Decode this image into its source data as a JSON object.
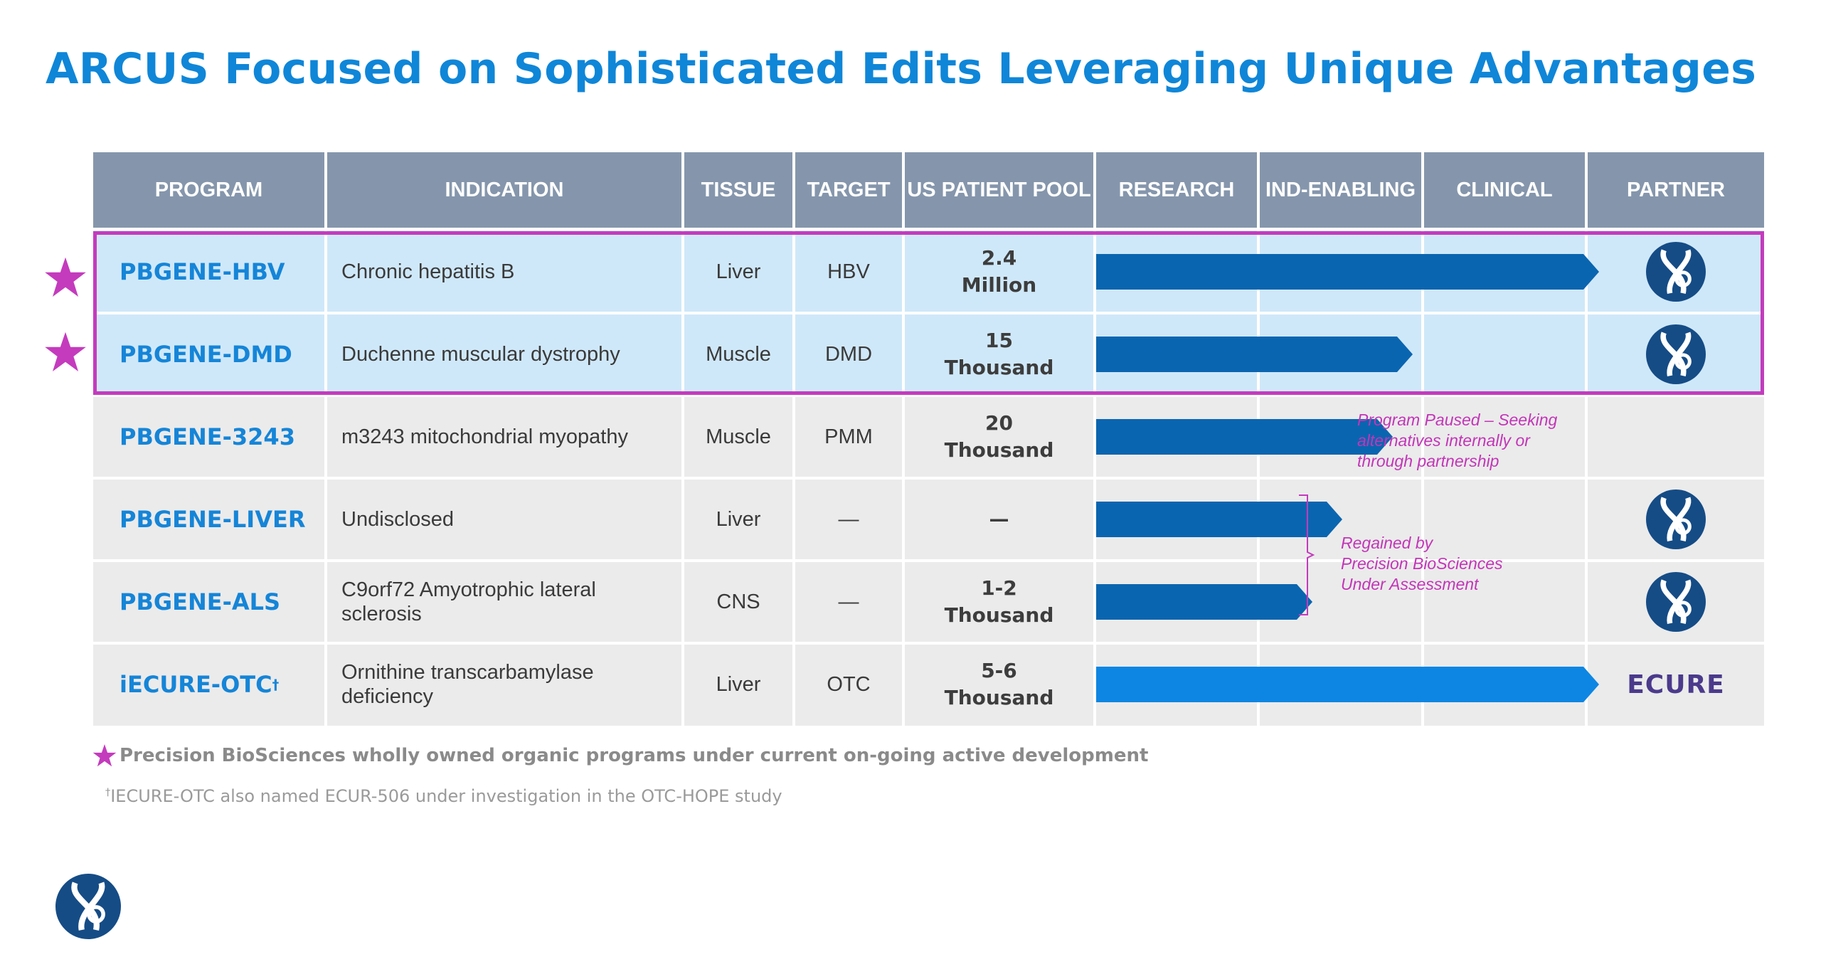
{
  "title": "ARCUS Focused on Sophisticated Edits Leveraging Unique Advantages",
  "headers": {
    "program": "PROGRAM",
    "indication": "INDICATION",
    "tissue": "TISSUE",
    "target": "TARGET",
    "pool": "US PATIENT POOL",
    "research": "RESEARCH",
    "ind_enabling": "IND-ENABLING",
    "clinical": "CLINICAL",
    "partner": "PARTNER"
  },
  "rows": [
    {
      "program": "PBGENE-HBV",
      "indication": "Chronic hepatitis B",
      "tissue": "Liver",
      "target": "HBV",
      "pool_line1": "2.4",
      "pool_line2": "Million",
      "progress_pct": 100,
      "partner": "precision-logo"
    },
    {
      "program": "PBGENE-DMD",
      "indication": "Duchenne muscular dystrophy",
      "tissue": "Muscle",
      "target": "DMD",
      "pool_line1": "15",
      "pool_line2": "Thousand",
      "progress_pct": 63,
      "partner": "precision-logo"
    },
    {
      "program": "PBGENE-3243",
      "indication": "m3243 mitochondrial myopathy",
      "tissue": "Muscle",
      "target": "PMM",
      "pool_line1": "20",
      "pool_line2": "Thousand",
      "progress_pct": 59,
      "partner": "none"
    },
    {
      "program": "PBGENE-LIVER",
      "indication": "Undisclosed",
      "tissue": "Liver",
      "target": "—",
      "pool_line1": "—",
      "pool_line2": "",
      "progress_pct": 49,
      "partner": "precision-logo"
    },
    {
      "program": "PBGENE-ALS",
      "indication": "C9orf72 Amyotrophic lateral sclerosis",
      "tissue": "CNS",
      "target": "—",
      "pool_line1": "1-2",
      "pool_line2": "Thousand",
      "progress_pct": 43,
      "partner": "precision-logo"
    },
    {
      "program": "iECURE-OTC",
      "program_sup": "†",
      "indication_line1": "Ornithine transcarbamylase",
      "indication_line2": "deficiency",
      "tissue": "Liver",
      "target": "OTC",
      "pool_line1": "5-6",
      "pool_line2": "Thousand",
      "progress_pct": 100,
      "partner": "ecure-logo"
    }
  ],
  "notes": {
    "paused_line1": "Program Paused – Seeking",
    "paused_line2": "alternatives internally or",
    "paused_line3": "through partnership",
    "regained_line1": "Regained by",
    "regained_line2": "Precision BioSciences",
    "regained_line3": "Under Assessment"
  },
  "ecure_logo_text": "ECURE",
  "legend": "Precision BioSciences wholly owned organic programs under current on-going active development",
  "footnote_sup": "†",
  "footnote": "IECURE-OTC also named ECUR-506 under investigation in the OTC-HOPE study",
  "colors": {
    "title": "#0f86d8",
    "header_bg": "#8596ac",
    "highlight_bg": "#cfe8f9",
    "row_bg": "#ebebeb",
    "arrow_dark": "#0a65b0",
    "arrow_light": "#0d86e3",
    "magenta": "#c43bbd",
    "logo_navy": "#154c86"
  }
}
